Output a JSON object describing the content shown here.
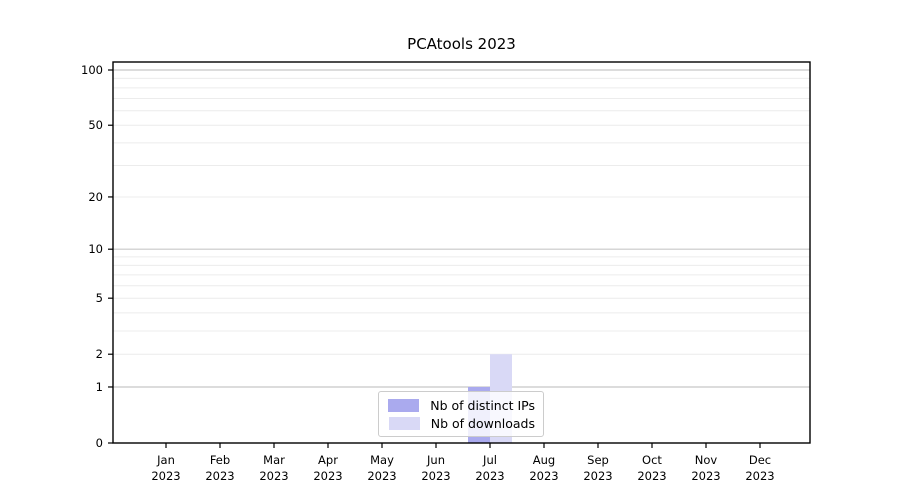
{
  "chart_data": {
    "type": "bar",
    "title": "PCAtools 2023",
    "categories": [
      "Jan",
      "Feb",
      "Mar",
      "Apr",
      "May",
      "Jun",
      "Jul",
      "Aug",
      "Sep",
      "Oct",
      "Nov",
      "Dec"
    ],
    "x_sub_label": "2023",
    "series": [
      {
        "name": "Nb of distinct IPs",
        "color": "#aaaaee",
        "values": [
          0,
          0,
          0,
          0,
          0,
          0,
          1,
          0,
          0,
          0,
          0,
          0
        ]
      },
      {
        "name": "Nb of downloads",
        "color": "#d9d9f6",
        "values": [
          0,
          0,
          0,
          0,
          0,
          0,
          2,
          0,
          0,
          0,
          0,
          0
        ]
      }
    ],
    "y_scale": "log1p",
    "ylim": [
      0,
      110
    ],
    "y_tick_values": [
      0,
      1,
      2,
      5,
      10,
      20,
      50,
      100
    ],
    "y_tick_labels": [
      "0",
      "1",
      "2",
      "5",
      "10",
      "20",
      "50",
      "100"
    ],
    "y_major_gridlines": [
      1,
      10,
      100
    ],
    "y_minor_gridlines": [
      2,
      3,
      4,
      5,
      6,
      7,
      8,
      9,
      20,
      30,
      40,
      50,
      60,
      70,
      80,
      90
    ],
    "grid": true,
    "legend_position": "bottom-center",
    "colors": {
      "axis": "#000000",
      "major_grid": "#c8c8c8",
      "minor_grid": "#ececec",
      "tick_label": "#000000",
      "background": "#ffffff"
    }
  }
}
